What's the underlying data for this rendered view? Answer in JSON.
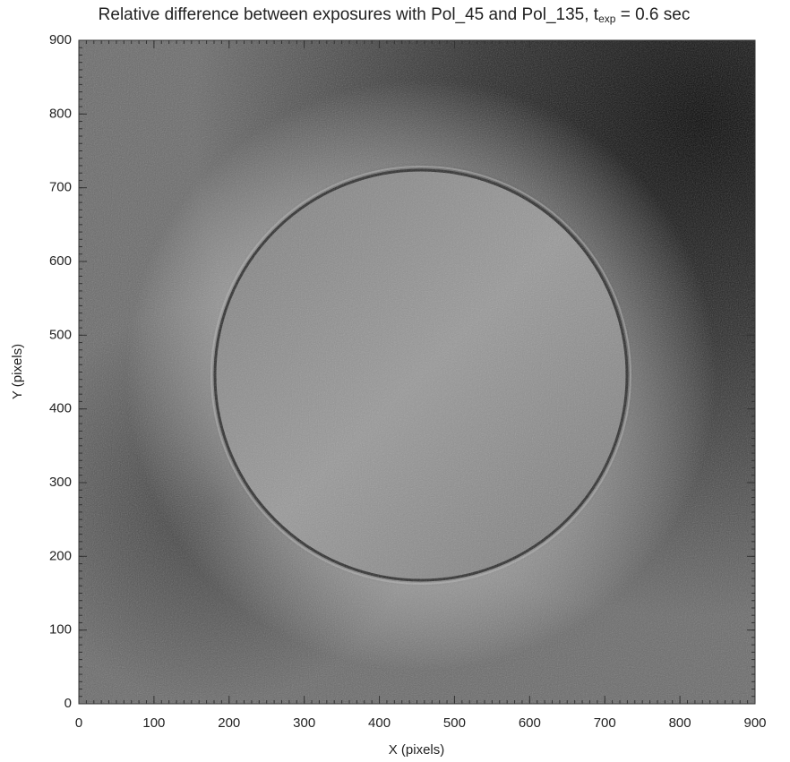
{
  "chart_data": {
    "type": "image",
    "title": [
      "Relative difference between exposures with Pol_45 and Pol_135, t",
      "exp",
      " = 0.6 sec"
    ],
    "xlabel": "X (pixels)",
    "ylabel": "Y (pixels)",
    "xlim": [
      0,
      900
    ],
    "ylim": [
      0,
      900
    ],
    "xticks": [
      0,
      100,
      200,
      300,
      400,
      500,
      600,
      700,
      800,
      900
    ],
    "yticks": [
      0,
      100,
      200,
      300,
      400,
      500,
      600,
      700,
      800,
      900
    ],
    "minor_tick_step": 10,
    "colormap": "gray"
  }
}
